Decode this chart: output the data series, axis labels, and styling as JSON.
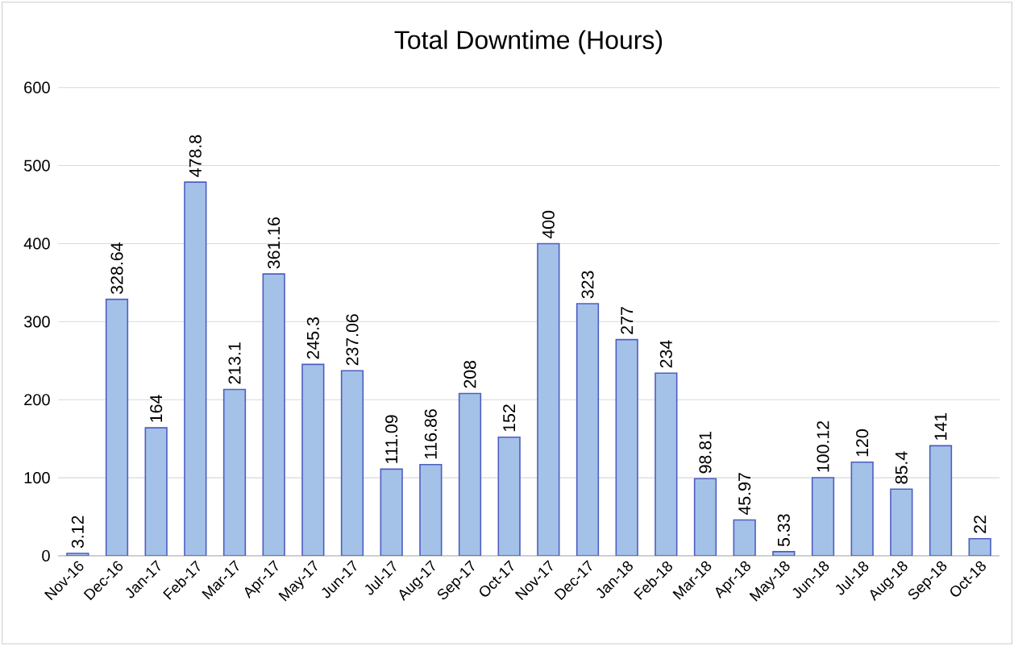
{
  "chart_data": {
    "type": "bar",
    "title": "Total Downtime (Hours)",
    "categories": [
      "Nov-16",
      "Dec-16",
      "Jan-17",
      "Feb-17",
      "Mar-17",
      "Apr-17",
      "May-17",
      "Jun-17",
      "Jul-17",
      "Aug-17",
      "Sep-17",
      "Oct-17",
      "Nov-17",
      "Dec-17",
      "Jan-18",
      "Feb-18",
      "Mar-18",
      "Apr-18",
      "May-18",
      "Jun-18",
      "Jul-18",
      "Aug-18",
      "Sep-18",
      "Oct-18"
    ],
    "values": [
      3.12,
      328.64,
      164,
      478.8,
      213.1,
      361.16,
      245.3,
      237.06,
      111.09,
      116.86,
      208,
      152,
      400,
      323,
      277,
      234,
      98.81,
      45.97,
      5.33,
      100.12,
      120,
      85.4,
      141,
      22
    ],
    "color": "#a4c2e8",
    "ylim": [
      0,
      600
    ],
    "yticks": [
      0,
      100,
      200,
      300,
      400,
      500,
      600
    ],
    "grid": "y",
    "data_labels": true
  }
}
